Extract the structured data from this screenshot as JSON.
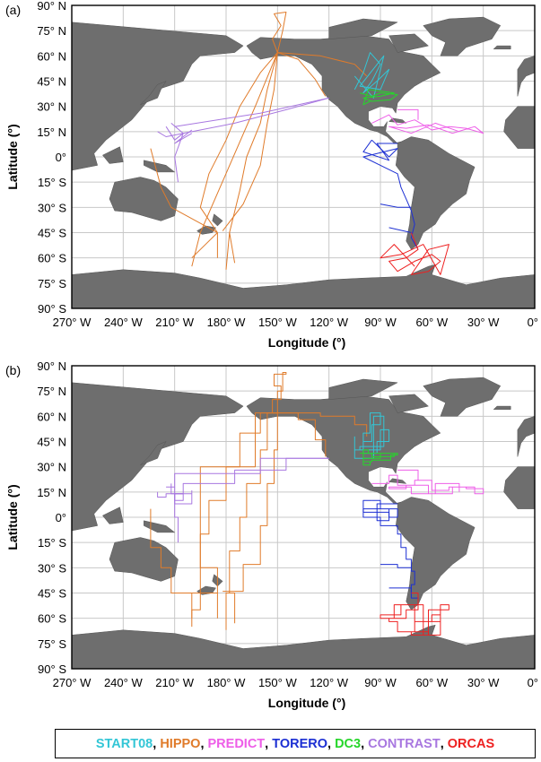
{
  "panels": [
    {
      "label": "(a)",
      "style": "smooth"
    },
    {
      "label": "(b)",
      "style": "gridded"
    }
  ],
  "axes": {
    "xlabel": "Longitude (°)",
    "ylabel": "Latitude (°)",
    "lon_ticks": [
      "270° W",
      "240° W",
      "210° W",
      "180° W",
      "150° W",
      "120° W",
      "90° W",
      "60° W",
      "30° W",
      "0°"
    ],
    "lat_ticks": [
      "90° N",
      "75° N",
      "60° N",
      "45° N",
      "30° N",
      "15° N",
      "0°",
      "15° S",
      "30° S",
      "45° S",
      "60° S",
      "75° S",
      "90° S"
    ],
    "lon_range": [
      -270,
      0
    ],
    "lat_range": [
      -90,
      90
    ],
    "grid": true
  },
  "colors": {
    "land": "#6e6e6e",
    "ocean": "#ffffff",
    "grid": "#c8c8c8",
    "START08": "#33c6d6",
    "HIPPO": "#e07b2a",
    "PREDICT": "#ee5ee8",
    "TORERO": "#1c2fd3",
    "DC3": "#26d62a",
    "CONTRAST": "#a877e0",
    "ORCAS": "#ee2020"
  },
  "legend": [
    {
      "name": "START08",
      "color": "#33c6d6"
    },
    {
      "name": "HIPPO",
      "color": "#e07b2a"
    },
    {
      "name": "PREDICT",
      "color": "#ee5ee8"
    },
    {
      "name": "TORERO",
      "color": "#1c2fd3"
    },
    {
      "name": "DC3",
      "color": "#26d62a"
    },
    {
      "name": "CONTRAST",
      "color": "#a877e0"
    },
    {
      "name": "ORCAS",
      "color": "#ee2020"
    }
  ],
  "campaigns": {
    "HIPPO": [
      [
        [
          -150,
          62
        ],
        [
          -153,
          70
        ],
        [
          -148,
          78
        ],
        [
          -152,
          85
        ],
        [
          -145,
          86
        ],
        [
          -147,
          75
        ],
        [
          -150,
          62
        ]
      ],
      [
        [
          -150,
          62
        ],
        [
          -160,
          50
        ],
        [
          -172,
          30
        ],
        [
          -180,
          10
        ],
        [
          -190,
          -10
        ],
        [
          -195,
          -30
        ],
        [
          -185,
          -45
        ],
        [
          -185,
          -60
        ]
      ],
      [
        [
          -150,
          62
        ],
        [
          -156,
          40
        ],
        [
          -160,
          20
        ],
        [
          -168,
          0
        ],
        [
          -172,
          -20
        ],
        [
          -178,
          -45
        ],
        [
          -180,
          -67
        ]
      ],
      [
        [
          -150,
          62
        ],
        [
          -125,
          60
        ],
        [
          -105,
          55
        ],
        [
          -98,
          48
        ]
      ],
      [
        [
          -185,
          -45
        ],
        [
          -212,
          -30
        ],
        [
          -218,
          -18
        ],
        [
          -224,
          5
        ]
      ],
      [
        [
          -185,
          -45
        ],
        [
          -195,
          -55
        ],
        [
          -200,
          -60
        ]
      ],
      [
        [
          -150,
          62
        ],
        [
          -138,
          58
        ],
        [
          -128,
          46
        ],
        [
          -122,
          36
        ]
      ],
      [
        [
          -182,
          -44
        ],
        [
          -170,
          -28
        ],
        [
          -160,
          -5
        ],
        [
          -156,
          20
        ],
        [
          -152,
          40
        ],
        [
          -150,
          62
        ]
      ],
      [
        [
          -178,
          -45
        ],
        [
          -175,
          -63
        ]
      ],
      [
        [
          -150,
          62
        ],
        [
          -163,
          30
        ],
        [
          -195,
          -45
        ],
        [
          -200,
          -65
        ]
      ]
    ],
    "START08": [
      [
        [
          -105,
          40
        ],
        [
          -100,
          50
        ],
        [
          -96,
          62
        ],
        [
          -90,
          55
        ],
        [
          -95,
          45
        ],
        [
          -100,
          38
        ],
        [
          -92,
          45
        ],
        [
          -85,
          52
        ],
        [
          -90,
          40
        ],
        [
          -102,
          42
        ],
        [
          -88,
          60
        ],
        [
          -94,
          35
        ],
        [
          -105,
          48
        ]
      ]
    ],
    "DC3": [
      [
        [
          -102,
          38
        ],
        [
          -95,
          36
        ],
        [
          -90,
          38
        ],
        [
          -80,
          37
        ],
        [
          -84,
          34
        ],
        [
          -95,
          33
        ],
        [
          -100,
          35
        ],
        [
          -90,
          36
        ],
        [
          -82,
          38
        ],
        [
          -97,
          40
        ],
        [
          -100,
          31
        ],
        [
          -96,
          33
        ]
      ]
    ],
    "PREDICT": [
      [
        [
          -95,
          20
        ],
        [
          -85,
          25
        ],
        [
          -80,
          19
        ],
        [
          -70,
          22
        ],
        [
          -60,
          16
        ],
        [
          -50,
          18
        ],
        [
          -40,
          17
        ],
        [
          -30,
          14
        ],
        [
          -35,
          18
        ],
        [
          -48,
          14
        ],
        [
          -62,
          19
        ],
        [
          -75,
          17
        ],
        [
          -85,
          18
        ],
        [
          -72,
          14
        ],
        [
          -58,
          20
        ],
        [
          -44,
          15
        ]
      ],
      [
        [
          -80,
          28
        ],
        [
          -68,
          28
        ],
        [
          -68,
          22
        ]
      ]
    ],
    "TORERO": [
      [
        [
          -95,
          10
        ],
        [
          -90,
          5
        ],
        [
          -85,
          0
        ],
        [
          -80,
          5
        ],
        [
          -100,
          0
        ],
        [
          -90,
          -5
        ],
        [
          -80,
          -10
        ],
        [
          -78,
          -18
        ],
        [
          -75,
          -25
        ],
        [
          -72,
          -32
        ],
        [
          -70,
          -40
        ],
        [
          -72,
          -48
        ],
        [
          -68,
          -55
        ]
      ],
      [
        [
          -95,
          10
        ],
        [
          -100,
          3
        ],
        [
          -85,
          -2
        ],
        [
          -92,
          8
        ],
        [
          -80,
          8
        ]
      ],
      [
        [
          -90,
          -28
        ],
        [
          -80,
          -30
        ],
        [
          -72,
          -30
        ]
      ],
      [
        [
          -85,
          -42
        ],
        [
          -72,
          -45
        ]
      ]
    ],
    "CONTRAST": [
      [
        [
          -120,
          35
        ],
        [
          -145,
          28
        ],
        [
          -175,
          20
        ],
        [
          -205,
          14
        ],
        [
          -215,
          12
        ],
        [
          -220,
          15
        ]
      ],
      [
        [
          -205,
          14
        ],
        [
          -210,
          0
        ],
        [
          -208,
          -15
        ]
      ],
      [
        [
          -215,
          18
        ],
        [
          -210,
          10
        ],
        [
          -205,
          14
        ],
        [
          -212,
          20
        ]
      ],
      [
        [
          -200,
          14
        ],
        [
          -210,
          8
        ],
        [
          -200,
          16
        ]
      ],
      [
        [
          -120,
          35
        ],
        [
          -160,
          26
        ],
        [
          -210,
          18
        ]
      ]
    ],
    "ORCAS": [
      [
        [
          -72,
          -45
        ],
        [
          -68,
          -55
        ],
        [
          -75,
          -60
        ],
        [
          -85,
          -62
        ],
        [
          -80,
          -68
        ],
        [
          -70,
          -62
        ],
        [
          -60,
          -58
        ],
        [
          -55,
          -62
        ],
        [
          -62,
          -68
        ],
        [
          -72,
          -70
        ],
        [
          -62,
          -55
        ],
        [
          -50,
          -52
        ],
        [
          -55,
          -70
        ],
        [
          -65,
          -52
        ],
        [
          -78,
          -58
        ],
        [
          -90,
          -60
        ],
        [
          -82,
          -52
        ],
        [
          -70,
          -65
        ]
      ]
    ]
  }
}
